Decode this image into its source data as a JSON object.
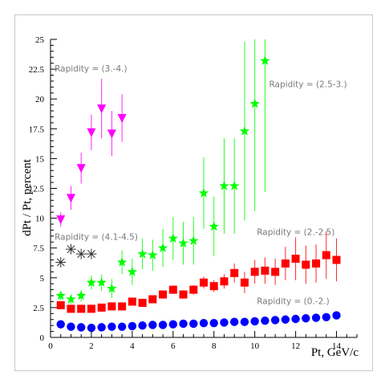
{
  "chart_data": {
    "type": "scatter",
    "title": "",
    "xlabel": "Pt, GeV/c",
    "ylabel": "dPt / Pt, percent",
    "xlim": [
      0,
      15
    ],
    "ylim": [
      0,
      25
    ],
    "xticks": [
      "0",
      "2",
      "4",
      "6",
      "8",
      "10",
      "12",
      "14"
    ],
    "yticks": [
      "0",
      "2.5",
      "5",
      "7.5",
      "10",
      "12.5",
      "15",
      "17.5",
      "20",
      "22.5",
      "25"
    ],
    "grid": false,
    "annotations": [
      {
        "text": "Rapidity = (3.-4.)",
        "x": 0.2,
        "y": 22.3
      },
      {
        "text": "Rapidity = (2.5-3.)",
        "x": 10.7,
        "y": 21.0
      },
      {
        "text": "Rapidity = (4.1-4.5)",
        "x": 0.2,
        "y": 8.2
      },
      {
        "text": "Rapidity = (2.-2.5)",
        "x": 10.1,
        "y": 8.6
      },
      {
        "text": "Rapidity = (0.-2.)",
        "x": 10.1,
        "y": 2.8
      }
    ],
    "series": [
      {
        "marker": "triangle-down",
        "color": "#ff00ff",
        "x": [
          0.5,
          1.0,
          1.5,
          2.0,
          2.5,
          3.0,
          3.5
        ],
        "y": [
          9.9,
          11.7,
          14.2,
          17.2,
          19.2,
          17.1,
          18.4
        ],
        "err": [
          0.6,
          1.0,
          1.3,
          1.5,
          2.5,
          1.9,
          2.0
        ]
      },
      {
        "marker": "asterisk",
        "color": "#333333",
        "x": [
          0.5,
          1.0,
          1.5,
          2.0
        ],
        "y": [
          6.3,
          7.4,
          7.0,
          7.0
        ],
        "err": [
          0,
          0,
          0,
          0
        ]
      },
      {
        "marker": "star",
        "color": "#00ff00",
        "x": [
          0.5,
          1.0,
          1.5,
          2.0,
          2.5,
          3.0,
          3.5,
          4.0,
          4.5,
          5.0,
          5.5,
          6.0,
          6.5,
          7.0,
          7.5,
          8.0,
          8.5,
          9.0,
          9.5,
          10.0,
          10.5
        ],
        "y": [
          3.5,
          3.2,
          3.5,
          4.6,
          4.6,
          4.1,
          6.3,
          5.5,
          7.0,
          6.9,
          7.5,
          8.3,
          7.9,
          8.1,
          12.1,
          9.3,
          12.7,
          12.7,
          17.3,
          19.6,
          23.2
        ],
        "err": [
          0.4,
          0.4,
          0.5,
          0.6,
          0.7,
          0.8,
          1.0,
          1.1,
          1.3,
          1.3,
          1.6,
          1.8,
          1.8,
          2.0,
          3.0,
          2.5,
          4.0,
          4.0,
          7.5,
          9.0,
          11.0
        ]
      },
      {
        "marker": "square",
        "color": "#ff0000",
        "x": [
          0.5,
          1.0,
          1.5,
          2.0,
          2.5,
          3.0,
          3.5,
          4.0,
          4.5,
          5.0,
          5.5,
          6.0,
          6.5,
          7.0,
          7.5,
          8.0,
          8.5,
          9.0,
          9.5,
          10.0,
          10.5,
          11.0,
          11.5,
          12.0,
          12.5,
          13.0,
          13.5,
          14.0
        ],
        "y": [
          2.7,
          2.4,
          2.4,
          2.4,
          2.5,
          2.6,
          2.6,
          3.0,
          2.9,
          3.2,
          3.6,
          4.0,
          3.6,
          4.0,
          4.6,
          4.3,
          4.7,
          5.4,
          4.6,
          5.5,
          5.6,
          5.5,
          6.2,
          6.6,
          6.1,
          6.2,
          6.9,
          6.5
        ],
        "err": [
          0.2,
          0.2,
          0.2,
          0.2,
          0.2,
          0.2,
          0.2,
          0.25,
          0.25,
          0.3,
          0.3,
          0.35,
          0.35,
          0.4,
          0.5,
          0.5,
          0.6,
          0.8,
          0.9,
          1.0,
          1.1,
          1.1,
          1.4,
          1.8,
          1.6,
          1.6,
          2.0,
          1.8
        ]
      },
      {
        "marker": "circle",
        "color": "#0000ff",
        "x": [
          0.5,
          1.0,
          1.5,
          2.0,
          2.5,
          3.0,
          3.5,
          4.0,
          4.5,
          5.0,
          5.5,
          6.0,
          6.5,
          7.0,
          7.5,
          8.0,
          8.5,
          9.0,
          9.5,
          10.0,
          10.5,
          11.0,
          11.5,
          12.0,
          12.5,
          13.0,
          13.5,
          14.0
        ],
        "y": [
          1.1,
          0.9,
          0.85,
          0.8,
          0.85,
          0.9,
          0.9,
          0.95,
          1.0,
          1.05,
          1.05,
          1.1,
          1.15,
          1.15,
          1.2,
          1.2,
          1.25,
          1.3,
          1.3,
          1.35,
          1.4,
          1.45,
          1.5,
          1.55,
          1.6,
          1.65,
          1.7,
          1.85
        ],
        "err": [
          0,
          0,
          0,
          0,
          0,
          0,
          0,
          0,
          0,
          0,
          0,
          0,
          0,
          0,
          0,
          0,
          0,
          0,
          0,
          0,
          0,
          0,
          0,
          0,
          0,
          0,
          0,
          0
        ]
      }
    ]
  }
}
